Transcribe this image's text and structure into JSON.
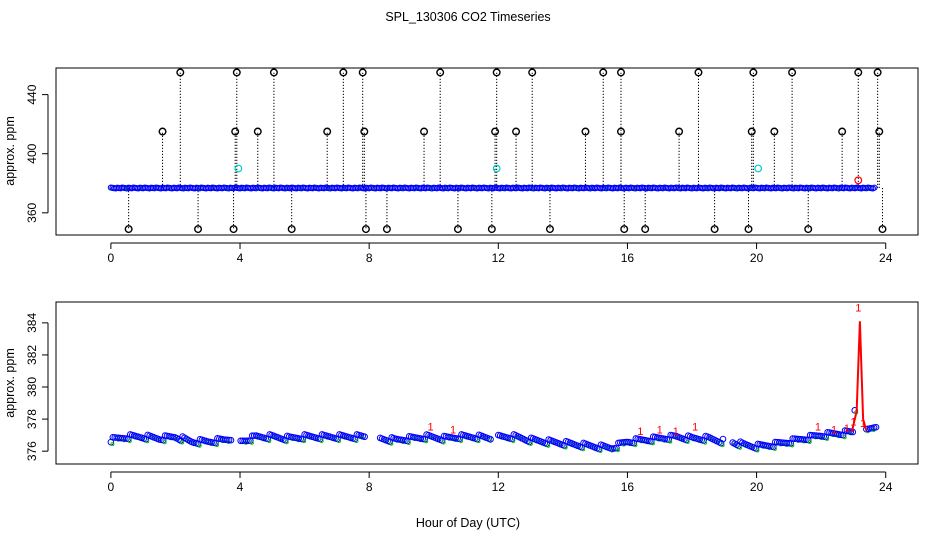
{
  "chart_data": [
    {
      "type": "scatter",
      "title": "SPL_130306  CO2 Timeseries",
      "xlabel": "Hour of Day (UTC)",
      "ylabel": "approx. ppm",
      "xlim": [
        -1.7,
        25
      ],
      "ylim": [
        345,
        458
      ],
      "x_ticks": [
        0,
        4,
        8,
        12,
        16,
        20,
        24
      ],
      "x_tick_labels": [
        "0",
        "4",
        "8",
        "12",
        "16",
        "20",
        "24"
      ],
      "y_ticks": [
        360,
        400,
        440
      ],
      "y_tick_labels": [
        "360",
        "400",
        "440"
      ],
      "baseline": 376.8,
      "series": [
        {
          "name": "baseline (blue circles)",
          "color": "#0000ff",
          "x_range": [
            0,
            23.7
          ],
          "y": 376.8
        },
        {
          "name": "spikes high (black circles)",
          "color": "#000000",
          "x": [
            2.15,
            3.9,
            5.05,
            7.2,
            7.8,
            10.2,
            11.95,
            13.05,
            15.25,
            15.8,
            18.2,
            19.9,
            21.1,
            23.15,
            23.75
          ],
          "y": 455
        },
        {
          "name": "spikes mid (black circles)",
          "color": "#000000",
          "x": [
            1.6,
            3.85,
            4.55,
            6.7,
            7.85,
            9.7,
            11.9,
            12.55,
            14.7,
            15.8,
            17.6,
            19.85,
            20.55,
            22.65,
            23.8
          ],
          "y": 415
        },
        {
          "name": "spikes low (black circles)",
          "color": "#000000",
          "x": [
            0.55,
            2.7,
            3.8,
            5.6,
            7.9,
            8.55,
            10.75,
            11.8,
            13.6,
            15.9,
            16.55,
            18.7,
            19.75,
            21.6,
            23.9
          ],
          "y": 349
        },
        {
          "name": "cyan points",
          "color": "#00cccc",
          "x": [
            3.95,
            11.95,
            20.05
          ],
          "y": 390
        },
        {
          "name": "red point",
          "color": "#ff0000",
          "x": [
            23.15
          ],
          "y": 382
        }
      ]
    },
    {
      "type": "line",
      "xlabel": "Hour of Day (UTC)",
      "ylabel": "approx. ppm",
      "xlim": [
        -1.7,
        25
      ],
      "ylim": [
        375.2,
        385.3
      ],
      "x_ticks": [
        0,
        4,
        8,
        12,
        16,
        20,
        24
      ],
      "x_tick_labels": [
        "0",
        "4",
        "8",
        "12",
        "16",
        "20",
        "24"
      ],
      "y_ticks": [
        376,
        378,
        380,
        382,
        384
      ],
      "y_tick_labels": [
        "376",
        "378",
        "380",
        "382",
        "384"
      ],
      "point_label": "1",
      "gaps": [
        [
          3.75,
          4.0
        ],
        [
          7.9,
          8.3
        ],
        [
          11.8,
          12.0
        ],
        [
          19.0,
          19.2
        ]
      ],
      "series": [
        {
          "name": "CO2 (approx. ppm)",
          "color": "#0000ff",
          "x": [
            0,
            0.5,
            1.0,
            1.5,
            2.0,
            2.5,
            3.0,
            3.5,
            3.75,
            4.0,
            4.5,
            5.0,
            5.5,
            6.0,
            6.5,
            7.0,
            7.5,
            7.9,
            8.3,
            8.8,
            9.3,
            9.8,
            10.3,
            10.8,
            11.3,
            11.8,
            12.0,
            12.5,
            13.0,
            13.5,
            14.0,
            14.5,
            15.0,
            15.5,
            16.0,
            16.5,
            17.0,
            17.5,
            18.0,
            18.5,
            19.0,
            19.2,
            19.6,
            20.0,
            20.5,
            21.0,
            21.5,
            22.0,
            22.5,
            23.0,
            23.2,
            23.4,
            23.7
          ],
          "y": [
            376.7,
            376.9,
            376.9,
            376.8,
            376.9,
            376.6,
            376.6,
            376.7,
            376.8,
            376.6,
            376.9,
            376.9,
            376.8,
            376.9,
            376.9,
            376.9,
            376.9,
            376.9,
            376.8,
            376.7,
            376.8,
            376.9,
            376.8,
            376.9,
            376.9,
            376.8,
            376.9,
            376.9,
            376.7,
            376.6,
            376.5,
            376.4,
            376.3,
            376.2,
            376.6,
            376.7,
            376.8,
            376.9,
            376.8,
            376.8,
            376.6,
            376.6,
            376.4,
            376.3,
            376.4,
            376.6,
            376.8,
            377.0,
            377.1,
            377.2,
            384.1,
            377.3,
            377.6
          ]
        },
        {
          "name": "red label points",
          "color": "#ff0000",
          "x": [
            9.9,
            10.6,
            16.4,
            17.0,
            17.5,
            18.1,
            21.9,
            22.4,
            22.8,
            23.0,
            23.15,
            23.3
          ],
          "y": [
            377.3,
            377.1,
            377.0,
            377.1,
            377.0,
            377.3,
            377.3,
            377.1,
            377.2,
            377.6,
            384.7,
            377.5
          ]
        }
      ]
    }
  ]
}
